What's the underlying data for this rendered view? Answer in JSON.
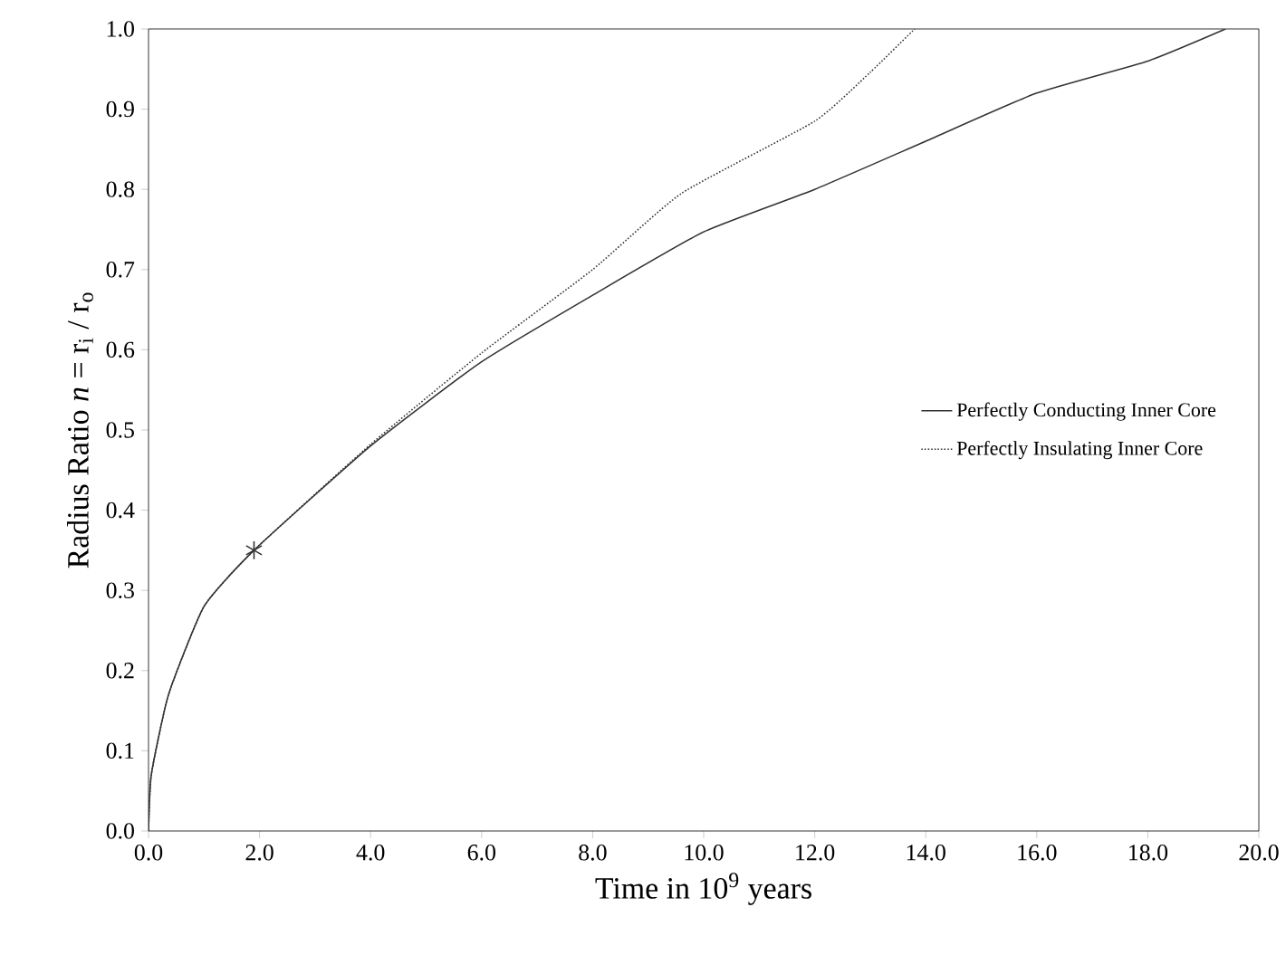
{
  "chart_data": {
    "type": "line",
    "xlabel": "Time in 10$^{9}$ years",
    "ylabel": "Radius Ratio   *n* = r$_{i}$ / r$_{o}$",
    "xlim": [
      0,
      20
    ],
    "ylim": [
      0,
      1
    ],
    "xticks": [
      {
        "value": 0,
        "label": "0.0"
      },
      {
        "value": 2,
        "label": "2.0"
      },
      {
        "value": 4,
        "label": "4.0"
      },
      {
        "value": 6,
        "label": "6.0"
      },
      {
        "value": 8,
        "label": "8.0"
      },
      {
        "value": 10,
        "label": "10.0"
      },
      {
        "value": 12,
        "label": "12.0"
      },
      {
        "value": 14,
        "label": "14.0"
      },
      {
        "value": 16,
        "label": "16.0"
      },
      {
        "value": 18,
        "label": "18.0"
      },
      {
        "value": 20,
        "label": "20.0"
      }
    ],
    "yticks": [
      {
        "value": 0,
        "label": "0.0"
      },
      {
        "value": 0.1,
        "label": "0.1"
      },
      {
        "value": 0.2,
        "label": "0.2"
      },
      {
        "value": 0.3,
        "label": "0.3"
      },
      {
        "value": 0.4,
        "label": "0.4"
      },
      {
        "value": 0.5,
        "label": "0.5"
      },
      {
        "value": 0.6,
        "label": "0.6"
      },
      {
        "value": 0.7,
        "label": "0.7"
      },
      {
        "value": 0.8,
        "label": "0.8"
      },
      {
        "value": 0.9,
        "label": "0.9"
      },
      {
        "value": 1.0,
        "label": "1.0"
      }
    ],
    "legend": "right",
    "series": [
      {
        "name": "Perfectly Conducting Inner Core",
        "color": "#333333",
        "line_style": "solid",
        "x": [
          0,
          0.05,
          0.36,
          1,
          1.9,
          4,
          6,
          8,
          10,
          12,
          14,
          16,
          18,
          19.4
        ],
        "values": [
          0.0,
          0.07,
          0.17,
          0.28,
          0.35,
          0.48,
          0.585,
          0.668,
          0.747,
          0.8,
          0.86,
          0.92,
          0.96,
          1.0
        ]
      },
      {
        "name": "Perfectly Insulating Inner Core",
        "color": "#333333",
        "line_style": "dotted",
        "x": [
          0,
          0.05,
          0.36,
          1,
          1.9,
          4,
          6,
          8,
          9.6,
          12,
          13,
          13.8
        ],
        "values": [
          0.0,
          0.07,
          0.17,
          0.28,
          0.35,
          0.482,
          0.596,
          0.7,
          0.795,
          0.885,
          0.946,
          1.0
        ]
      },
      {
        "type": "scatter",
        "marker": "cross",
        "color": "#333333",
        "x": [
          1.9
        ],
        "values": [
          0.35
        ]
      }
    ]
  }
}
